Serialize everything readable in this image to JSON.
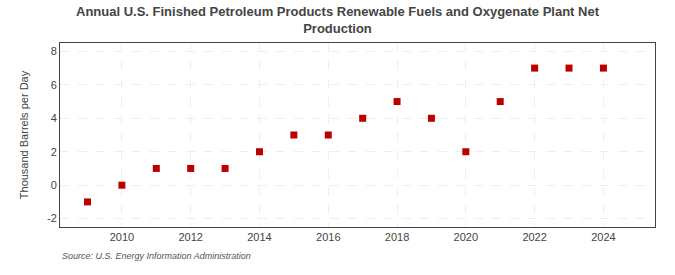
{
  "chart_data": {
    "type": "scatter",
    "title": "Annual U.S. Finished Petroleum Products Renewable Fuels and Oxygenate Plant Net\nProduction",
    "y_label": "Thousand Barrels per Day",
    "source": "Source: U.S. Energy Information Administration",
    "x": [
      2009,
      2010,
      2011,
      2012,
      2013,
      2014,
      2015,
      2016,
      2017,
      2018,
      2019,
      2020,
      2021,
      2022,
      2023,
      2024
    ],
    "values": [
      -1,
      0,
      1,
      1,
      1,
      2,
      3,
      3,
      4,
      5,
      4,
      2,
      5,
      7,
      7,
      7
    ],
    "color": "#bb0000",
    "marker": "square",
    "xlim": [
      2008.2,
      2025.5
    ],
    "ylim": [
      -2.5,
      8.5
    ],
    "xticks": [
      2010,
      2012,
      2014,
      2016,
      2018,
      2020,
      2022,
      2024
    ],
    "yticks": [
      -2,
      0,
      2,
      4,
      6,
      8
    ],
    "grid": true
  }
}
